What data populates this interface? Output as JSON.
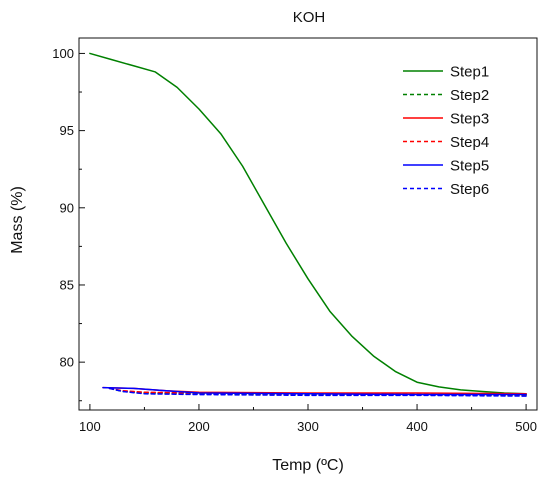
{
  "chart_data": {
    "type": "line",
    "title": "KOH",
    "xlabel": "Temp (ºC)",
    "ylabel": "Mass (%)",
    "xlim": [
      90,
      510
    ],
    "ylim": [
      76.9,
      101.0
    ],
    "xticks": [
      100,
      200,
      300,
      400,
      500
    ],
    "yticks": [
      80,
      85,
      90,
      95,
      100
    ],
    "grid": false,
    "legend_position": "top-right",
    "series": [
      {
        "name": "Step1",
        "color": "#008000",
        "dash": "solid",
        "points": [
          [
            100,
            100.0
          ],
          [
            120,
            99.6
          ],
          [
            140,
            99.2
          ],
          [
            160,
            98.8
          ],
          [
            180,
            97.8
          ],
          [
            200,
            96.4
          ],
          [
            220,
            94.8
          ],
          [
            240,
            92.7
          ],
          [
            260,
            90.2
          ],
          [
            280,
            87.7
          ],
          [
            300,
            85.4
          ],
          [
            320,
            83.3
          ],
          [
            340,
            81.7
          ],
          [
            360,
            80.4
          ],
          [
            380,
            79.4
          ],
          [
            400,
            78.7
          ],
          [
            420,
            78.4
          ],
          [
            440,
            78.2
          ],
          [
            460,
            78.1
          ],
          [
            480,
            78.0
          ],
          [
            500,
            77.95
          ]
        ]
      },
      {
        "name": "Step2",
        "color": "#008000",
        "dash": "dashed",
        "points": [
          [
            118,
            78.3
          ],
          [
            130,
            78.1
          ],
          [
            150,
            78.0
          ],
          [
            200,
            77.95
          ],
          [
            300,
            77.9
          ],
          [
            400,
            77.9
          ],
          [
            500,
            77.85
          ]
        ]
      },
      {
        "name": "Step3",
        "color": "#ff0000",
        "dash": "solid",
        "points": [
          [
            112,
            78.35
          ],
          [
            140,
            78.3
          ],
          [
            170,
            78.15
          ],
          [
            200,
            78.05
          ],
          [
            300,
            78.0
          ],
          [
            400,
            78.0
          ],
          [
            500,
            77.95
          ]
        ]
      },
      {
        "name": "Step4",
        "color": "#ff0000",
        "dash": "dashed",
        "points": [
          [
            118,
            78.3
          ],
          [
            130,
            78.15
          ],
          [
            150,
            78.05
          ],
          [
            200,
            78.0
          ],
          [
            300,
            77.95
          ],
          [
            400,
            77.9
          ],
          [
            500,
            77.9
          ]
        ]
      },
      {
        "name": "Step5",
        "color": "#0000ff",
        "dash": "solid",
        "points": [
          [
            112,
            78.35
          ],
          [
            140,
            78.3
          ],
          [
            170,
            78.15
          ],
          [
            200,
            78.0
          ],
          [
            300,
            77.95
          ],
          [
            400,
            77.9
          ],
          [
            500,
            77.9
          ]
        ]
      },
      {
        "name": "Step6",
        "color": "#0000ff",
        "dash": "dashed",
        "points": [
          [
            118,
            78.3
          ],
          [
            130,
            78.1
          ],
          [
            150,
            77.95
          ],
          [
            200,
            77.9
          ],
          [
            300,
            77.85
          ],
          [
            400,
            77.85
          ],
          [
            500,
            77.8
          ]
        ]
      }
    ]
  }
}
